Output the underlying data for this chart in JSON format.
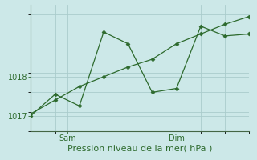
{
  "line1_x": [
    0,
    1,
    2,
    3,
    4,
    5,
    6,
    7,
    8,
    9
  ],
  "line1_y": [
    1017.0,
    1017.55,
    1017.25,
    1019.15,
    1018.85,
    1017.6,
    1017.7,
    1019.3,
    1019.05,
    1019.1
  ],
  "line2_x": [
    0,
    1,
    2,
    3,
    4,
    5,
    6,
    7,
    8,
    9
  ],
  "line2_y": [
    1017.05,
    1017.4,
    1017.75,
    1018.0,
    1018.25,
    1018.45,
    1018.85,
    1019.1,
    1019.35,
    1019.55
  ],
  "line_color": "#2d6a2d",
  "bg_color": "#cce8e8",
  "grid_color": "#aacccc",
  "yticks": [
    1017,
    1018
  ],
  "ylim": [
    1016.6,
    1019.85
  ],
  "xlim": [
    0,
    9
  ],
  "sam_x": 1.5,
  "dim_x": 6.0,
  "xlabel": "Pression niveau de la mer( hPa )",
  "xlabel_fontsize": 8,
  "tick_fontsize": 7,
  "marker": "D",
  "markersize": 2.5
}
